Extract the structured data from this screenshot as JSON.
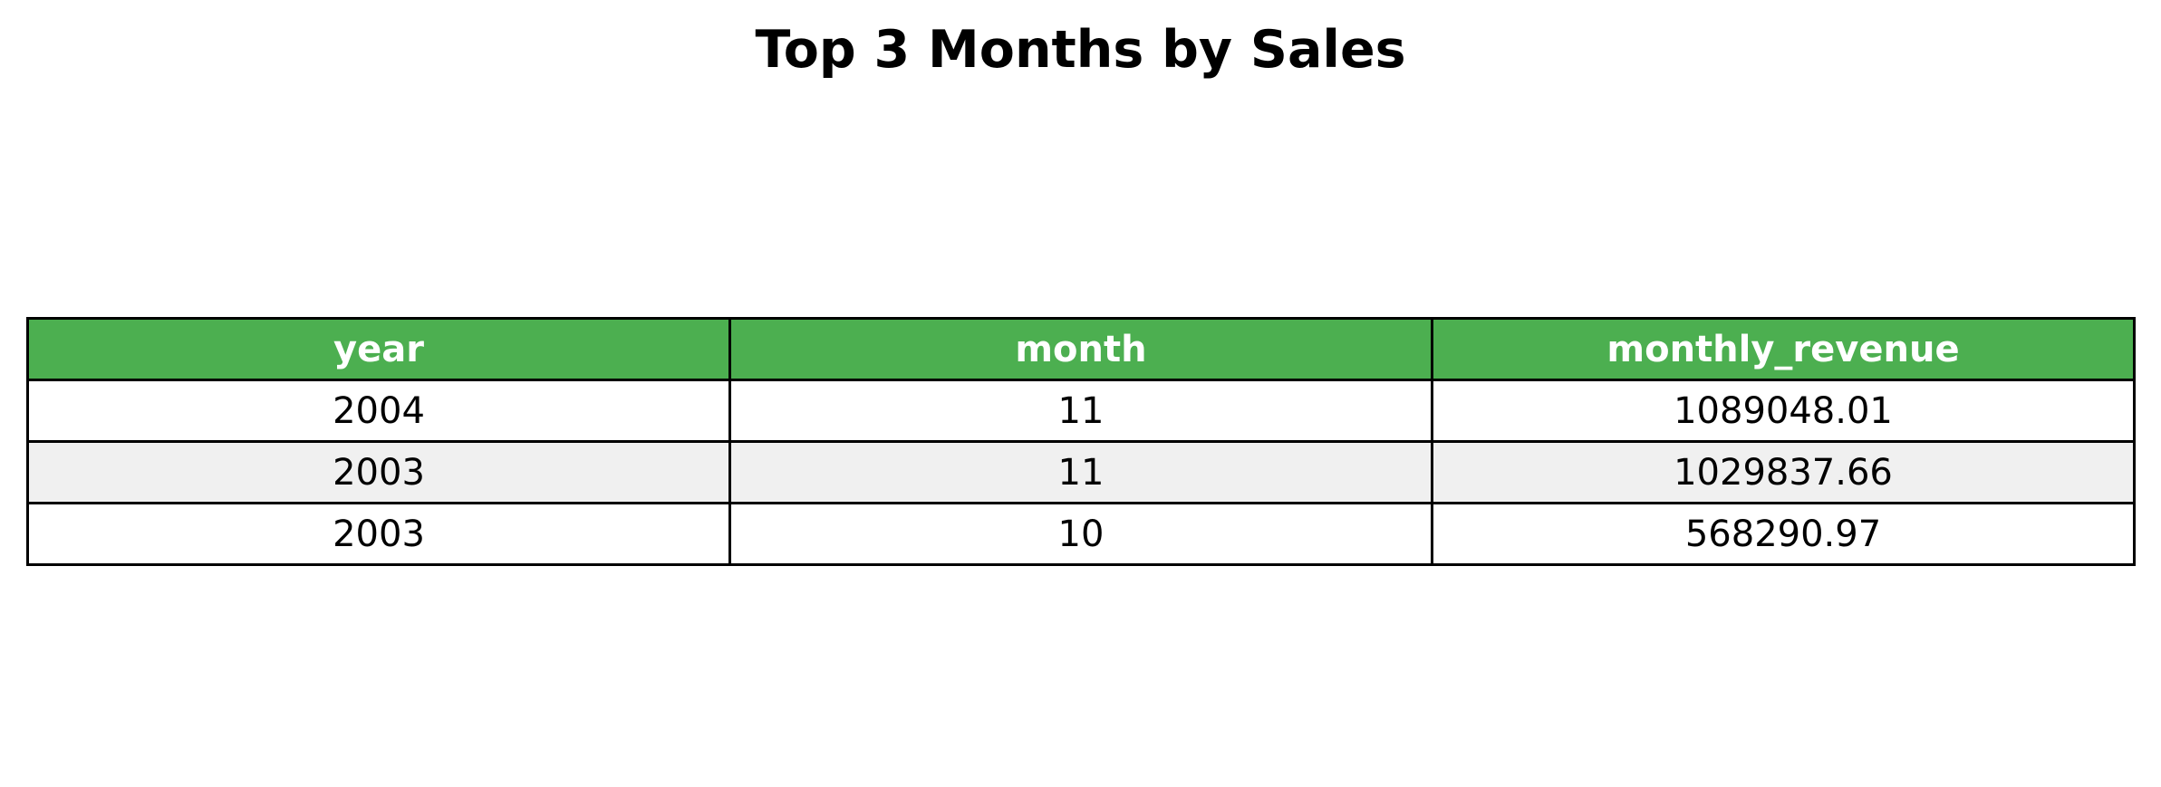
{
  "chart_data": {
    "type": "table",
    "title": "Top 3 Months by Sales",
    "columns": [
      "year",
      "month",
      "monthly_revenue"
    ],
    "rows": [
      [
        "2004",
        "11",
        "1089048.01"
      ],
      [
        "2003",
        "11",
        "1029837.66"
      ],
      [
        "2003",
        "10",
        "568290.97"
      ]
    ],
    "colors": {
      "header_bg": "#4caf50",
      "header_text": "#ffffff",
      "row_even": "#ffffff",
      "row_odd": "#f0f0f0",
      "border": "#000000"
    }
  }
}
